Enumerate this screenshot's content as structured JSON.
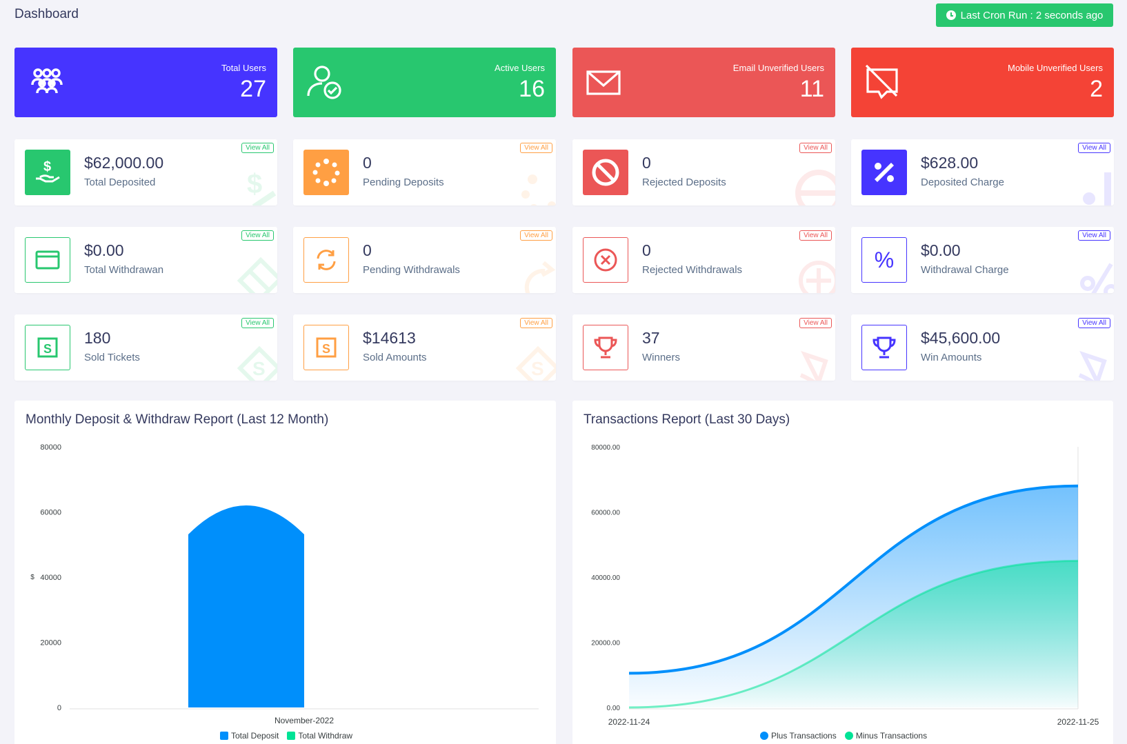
{
  "header": {
    "title": "Dashboard",
    "cron_label": "Last Cron Run : 2 seconds ago"
  },
  "top_cards": [
    {
      "label": "Total Users",
      "value": "27",
      "color": "#4634ff",
      "icon": "users-icon"
    },
    {
      "label": "Active Users",
      "value": "16",
      "color": "#28c76f",
      "icon": "user-check-icon"
    },
    {
      "label": "Email Unverified Users",
      "value": "11",
      "color": "#eb5656",
      "icon": "envelope-icon"
    },
    {
      "label": "Mobile Unverified Users",
      "value": "2",
      "color": "#f44336",
      "icon": "comment-slash-icon"
    }
  ],
  "view_all_label": "View All",
  "deposit_cards": [
    {
      "value": "$62,000.00",
      "label": "Total Deposited",
      "color": "#28c76f",
      "icon": "hand-dollar-icon"
    },
    {
      "value": "0",
      "label": "Pending Deposits",
      "color": "#ff9f43",
      "icon": "spinner-icon"
    },
    {
      "value": "0",
      "label": "Rejected Deposits",
      "color": "#eb5656",
      "icon": "ban-icon"
    },
    {
      "value": "$628.00",
      "label": "Deposited Charge",
      "color": "#4634ff",
      "icon": "percent-icon"
    }
  ],
  "withdraw_cards": [
    {
      "value": "$0.00",
      "label": "Total Withdrawan",
      "color": "#28c76f",
      "icon": "credit-card-icon"
    },
    {
      "value": "0",
      "label": "Pending Withdrawals",
      "color": "#ff9f43",
      "icon": "sync-icon"
    },
    {
      "value": "0",
      "label": "Rejected Withdrawals",
      "color": "#eb5656",
      "icon": "times-circle-icon"
    },
    {
      "value": "$0.00",
      "label": "Withdrawal Charge",
      "color": "#4634ff",
      "icon": "percent-icon"
    }
  ],
  "lottery_cards": [
    {
      "value": "180",
      "label": "Sold Tickets",
      "color": "#28c76f",
      "icon": "money-icon"
    },
    {
      "value": "$14613",
      "label": "Sold Amounts",
      "color": "#ff9f43",
      "icon": "money-icon"
    },
    {
      "value": "37",
      "label": "Winners",
      "color": "#eb5656",
      "icon": "trophy-icon"
    },
    {
      "value": "$45,600.00",
      "label": "Win Amounts",
      "color": "#4634ff",
      "icon": "trophy-icon"
    }
  ],
  "monthly_chart": {
    "title": "Monthly Deposit & Withdraw Report (Last 12 Month)"
  },
  "transactions_chart": {
    "title": "Transactions Report (Last 30 Days)"
  },
  "chart_data": [
    {
      "type": "bar",
      "title": "Monthly Deposit & Withdraw Report (Last 12 Month)",
      "categories": [
        "November-2022"
      ],
      "series": [
        {
          "name": "Total Deposit",
          "values": [
            62000
          ],
          "color": "#008ffb"
        },
        {
          "name": "Total Withdraw",
          "values": [
            0
          ],
          "color": "#00e396"
        }
      ],
      "ylabel": "$",
      "ylim": [
        0,
        80000
      ],
      "yticks": [
        "80000",
        "60000",
        "40000",
        "20000",
        "0"
      ],
      "legend": "bottom"
    },
    {
      "type": "area",
      "title": "Transactions Report (Last 30 Days)",
      "x": [
        "2022-11-24",
        "2022-11-25"
      ],
      "series": [
        {
          "name": "Plus Transactions",
          "values": [
            10500,
            68000
          ],
          "color": "#008ffb"
        },
        {
          "name": "Minus Transactions",
          "values": [
            0,
            45000
          ],
          "color": "#00e396"
        }
      ],
      "ylim": [
        0,
        80000
      ],
      "yticks": [
        "80000.00",
        "60000.00",
        "40000.00",
        "20000.00",
        "0.00"
      ],
      "legend": "bottom"
    }
  ]
}
